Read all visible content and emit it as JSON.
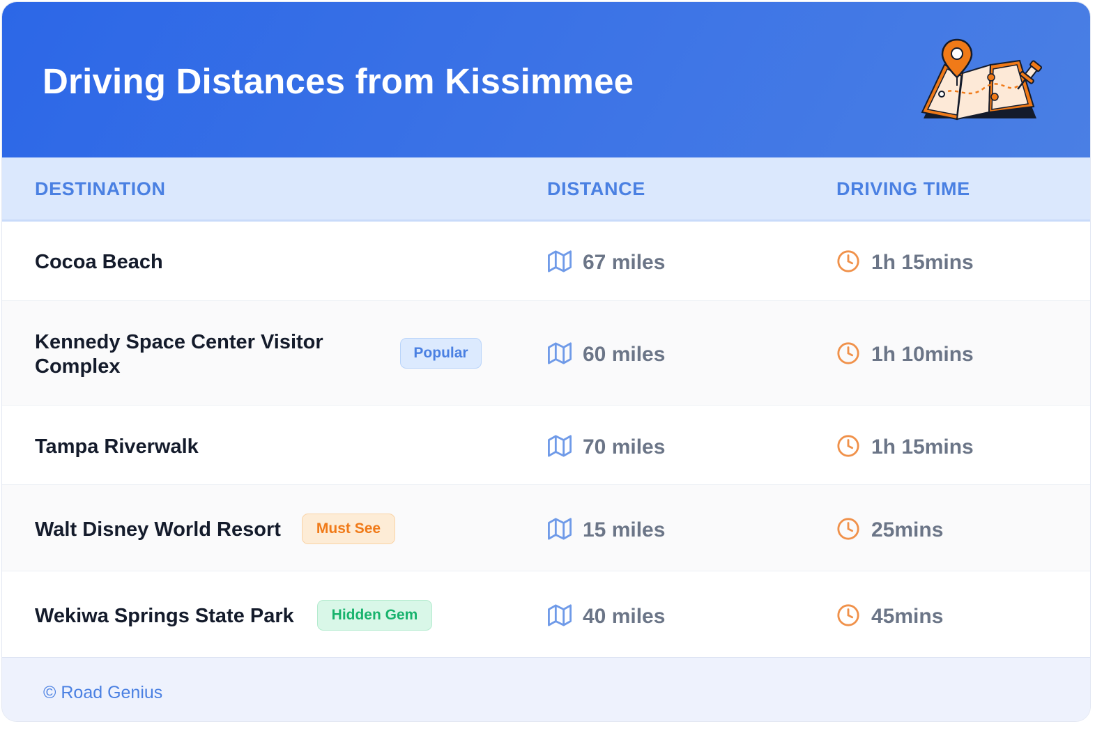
{
  "title": "Driving Distances from Kissimmee",
  "columns": {
    "destination": "DESTINATION",
    "distance": "DISTANCE",
    "driving_time": "DRIVING TIME"
  },
  "rows": [
    {
      "destination": "Cocoa Beach",
      "badge": "",
      "distance": "67 miles",
      "time": "1h 15mins"
    },
    {
      "destination": "Kennedy Space Center Visitor Complex",
      "badge": "Popular",
      "badge_color": "#4a80e2",
      "distance": "60 miles",
      "time": "1h 10mins"
    },
    {
      "destination": "Tampa Riverwalk",
      "badge": "",
      "distance": "70 miles",
      "time": "1h 15mins"
    },
    {
      "destination": "Walt Disney World Resort",
      "badge": "Must See",
      "badge_color": "#f07a18",
      "distance": "15 miles",
      "time": "25mins"
    },
    {
      "destination": "Wekiwa Springs State Park",
      "badge": "Hidden Gem",
      "badge_color": "#18b36d",
      "distance": "40 miles",
      "time": "45mins"
    }
  ],
  "icons": {
    "distance": "map-icon",
    "time": "clock-icon",
    "header": "map-pin-illustration"
  },
  "colors": {
    "header_start": "#2c67e7",
    "header_end": "#4a7fe4",
    "accent": "#4a80e2",
    "clock": "#f0914a"
  },
  "footer": "© Road Genius"
}
